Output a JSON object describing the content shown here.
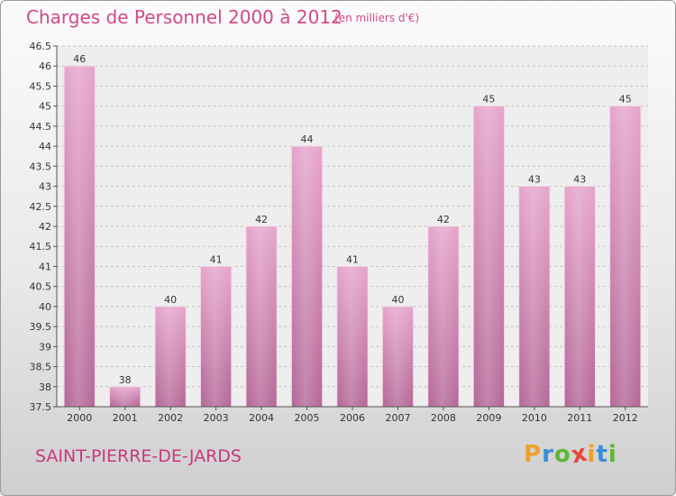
{
  "header": {
    "title": "Charges de Personnel 2000 à 2012",
    "subtitle": "(en milliers d'€)"
  },
  "footer": {
    "place": "SAINT-PIERRE-DE-JARDS",
    "logo": {
      "letters": [
        "P",
        "r",
        "o",
        "x",
        "i",
        "t",
        "i"
      ],
      "colors": [
        "#f0a02a",
        "#3a8fd6",
        "#5cb833",
        "#e8453c",
        "#f0a02a",
        "#3a8fd6",
        "#5cb833"
      ]
    }
  },
  "chart_data": {
    "type": "bar",
    "title": "Charges de Personnel 2000 à 2012",
    "subtitle": "(en milliers d'€)",
    "categories": [
      "2000",
      "2001",
      "2002",
      "2003",
      "2004",
      "2005",
      "2006",
      "2007",
      "2008",
      "2009",
      "2010",
      "2011",
      "2012"
    ],
    "values": [
      46,
      38,
      40,
      41,
      42,
      44,
      41,
      40,
      42,
      45,
      43,
      43,
      45
    ],
    "ylim": [
      37.5,
      46.5
    ],
    "yticks": [
      "37.5",
      "38",
      "38.5",
      "39",
      "39.5",
      "40",
      "40.5",
      "41",
      "41.5",
      "42",
      "42.5",
      "43",
      "43.5",
      "44",
      "44.5",
      "45",
      "45.5",
      "46",
      "46.5"
    ],
    "grid": true,
    "bar_color": "#d98bb5"
  }
}
